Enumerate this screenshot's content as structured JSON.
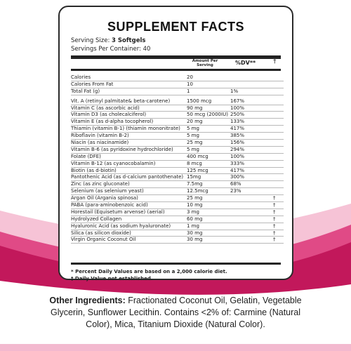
{
  "title": "SUPPLEMENT FACTS",
  "serving_size_label": "Serving Size:",
  "serving_size_value": "3 Softgels",
  "servings_per_container_label": "Servings Per Container:",
  "servings_per_container_value": "40",
  "columns": {
    "amount": "Amount Per Serving",
    "dv": "%DV**",
    "dagger": "†"
  },
  "rows_group1": [
    {
      "name": "Calories",
      "amount": "20",
      "dv": "",
      "dagger": ""
    },
    {
      "name": "Calories From Fat",
      "amount": "10",
      "dv": "",
      "dagger": ""
    },
    {
      "name": "Total Fat (g)",
      "amount": "1",
      "dv": "1%",
      "dagger": ""
    }
  ],
  "rows_group2": [
    {
      "name": "Vit. A (retinyl palmitate& beta-carotene)",
      "amount": "1500 mcg",
      "dv": "167%",
      "dagger": ""
    },
    {
      "name": "Vitamin C (as ascorbic acid)",
      "amount": "90 mg",
      "dv": "100%",
      "dagger": ""
    },
    {
      "name": "Vitamin D3 (as cholecalciferol)",
      "amount": "50 mcg (2000IU)",
      "dv": "250%",
      "dagger": ""
    },
    {
      "name": "Vitamin E (as d-alpha tocopherol)",
      "amount": "20 mg",
      "dv": "133%",
      "dagger": ""
    },
    {
      "name": "Thiamin (vitamin B-1) (thiamin mononitrate)",
      "amount": "5 mg",
      "dv": "417%",
      "dagger": ""
    },
    {
      "name": "Riboflavin (vitamin B-2)",
      "amount": "5 mg",
      "dv": "385%",
      "dagger": ""
    },
    {
      "name": "Niacin (as niacinamide)",
      "amount": "25 mg",
      "dv": "156%",
      "dagger": ""
    },
    {
      "name": "Vitamin B-6 (as pyridoxine hydrochloride)",
      "amount": "5 mg",
      "dv": "294%",
      "dagger": ""
    },
    {
      "name": "Folate (DFE)",
      "amount": "400 mcg",
      "dv": "100%",
      "dagger": ""
    },
    {
      "name": "Vitamin B-12 (as cyanocobalamin)",
      "amount": "8 mcg",
      "dv": "333%",
      "dagger": ""
    },
    {
      "name": "Biotin (as d-biotin)",
      "amount": "125 mcg",
      "dv": "417%",
      "dagger": ""
    },
    {
      "name": "Pantothenic Acid (as d-calcium pantothenate)",
      "amount": "15mg",
      "dv": "300%",
      "dagger": ""
    },
    {
      "name": "Zinc (as zinc gluconate)",
      "amount": "7.5mg",
      "dv": "68%",
      "dagger": ""
    },
    {
      "name": "Selenium (as selenium yeast)",
      "amount": "12.5mcg",
      "dv": "23%",
      "dagger": ""
    },
    {
      "name": "Argan Oil (Argania spinosa)",
      "amount": "25 mg",
      "dv": "",
      "dagger": "†"
    },
    {
      "name": "PABA (para-aminobenzoic acid)",
      "amount": "10 mg",
      "dv": "",
      "dagger": "†"
    },
    {
      "name": "Horestail (Equisetum arvense) (aerial)",
      "amount": "3 mg",
      "dv": "",
      "dagger": "†"
    },
    {
      "name": "Hydrolyzed Collagen",
      "amount": "60 mg",
      "dv": "",
      "dagger": "†"
    },
    {
      "name": "Hyaluronic Acid (as sodium hyaluronate)",
      "amount": "1 mg",
      "dv": "",
      "dagger": "†"
    },
    {
      "name": "Silica (as silicon dioxide)",
      "amount": "30 mg",
      "dv": "",
      "dagger": "†"
    },
    {
      "name": "Virgin Organic Coconut Oil",
      "amount": "30 mg",
      "dv": "",
      "dagger": "†"
    }
  ],
  "footnote_1": "* Percent Daily Values are based on a 2,000 calorie diet.",
  "footnote_2": "† Daily Value not established.",
  "other_lead": "Other Ingredients:",
  "other_text": " Fractionated Coconut Oil, Gelatin, Vegetable Glycerin, Sunflower Lecithin. Contains <2% of: Carmine (Natural Color), Mica, Titanium Dioxide (Natural Color).",
  "colors": {
    "wave_dark": "#c2185b",
    "wave_mid": "#e04a86",
    "wave_light": "#f6c3d6"
  }
}
